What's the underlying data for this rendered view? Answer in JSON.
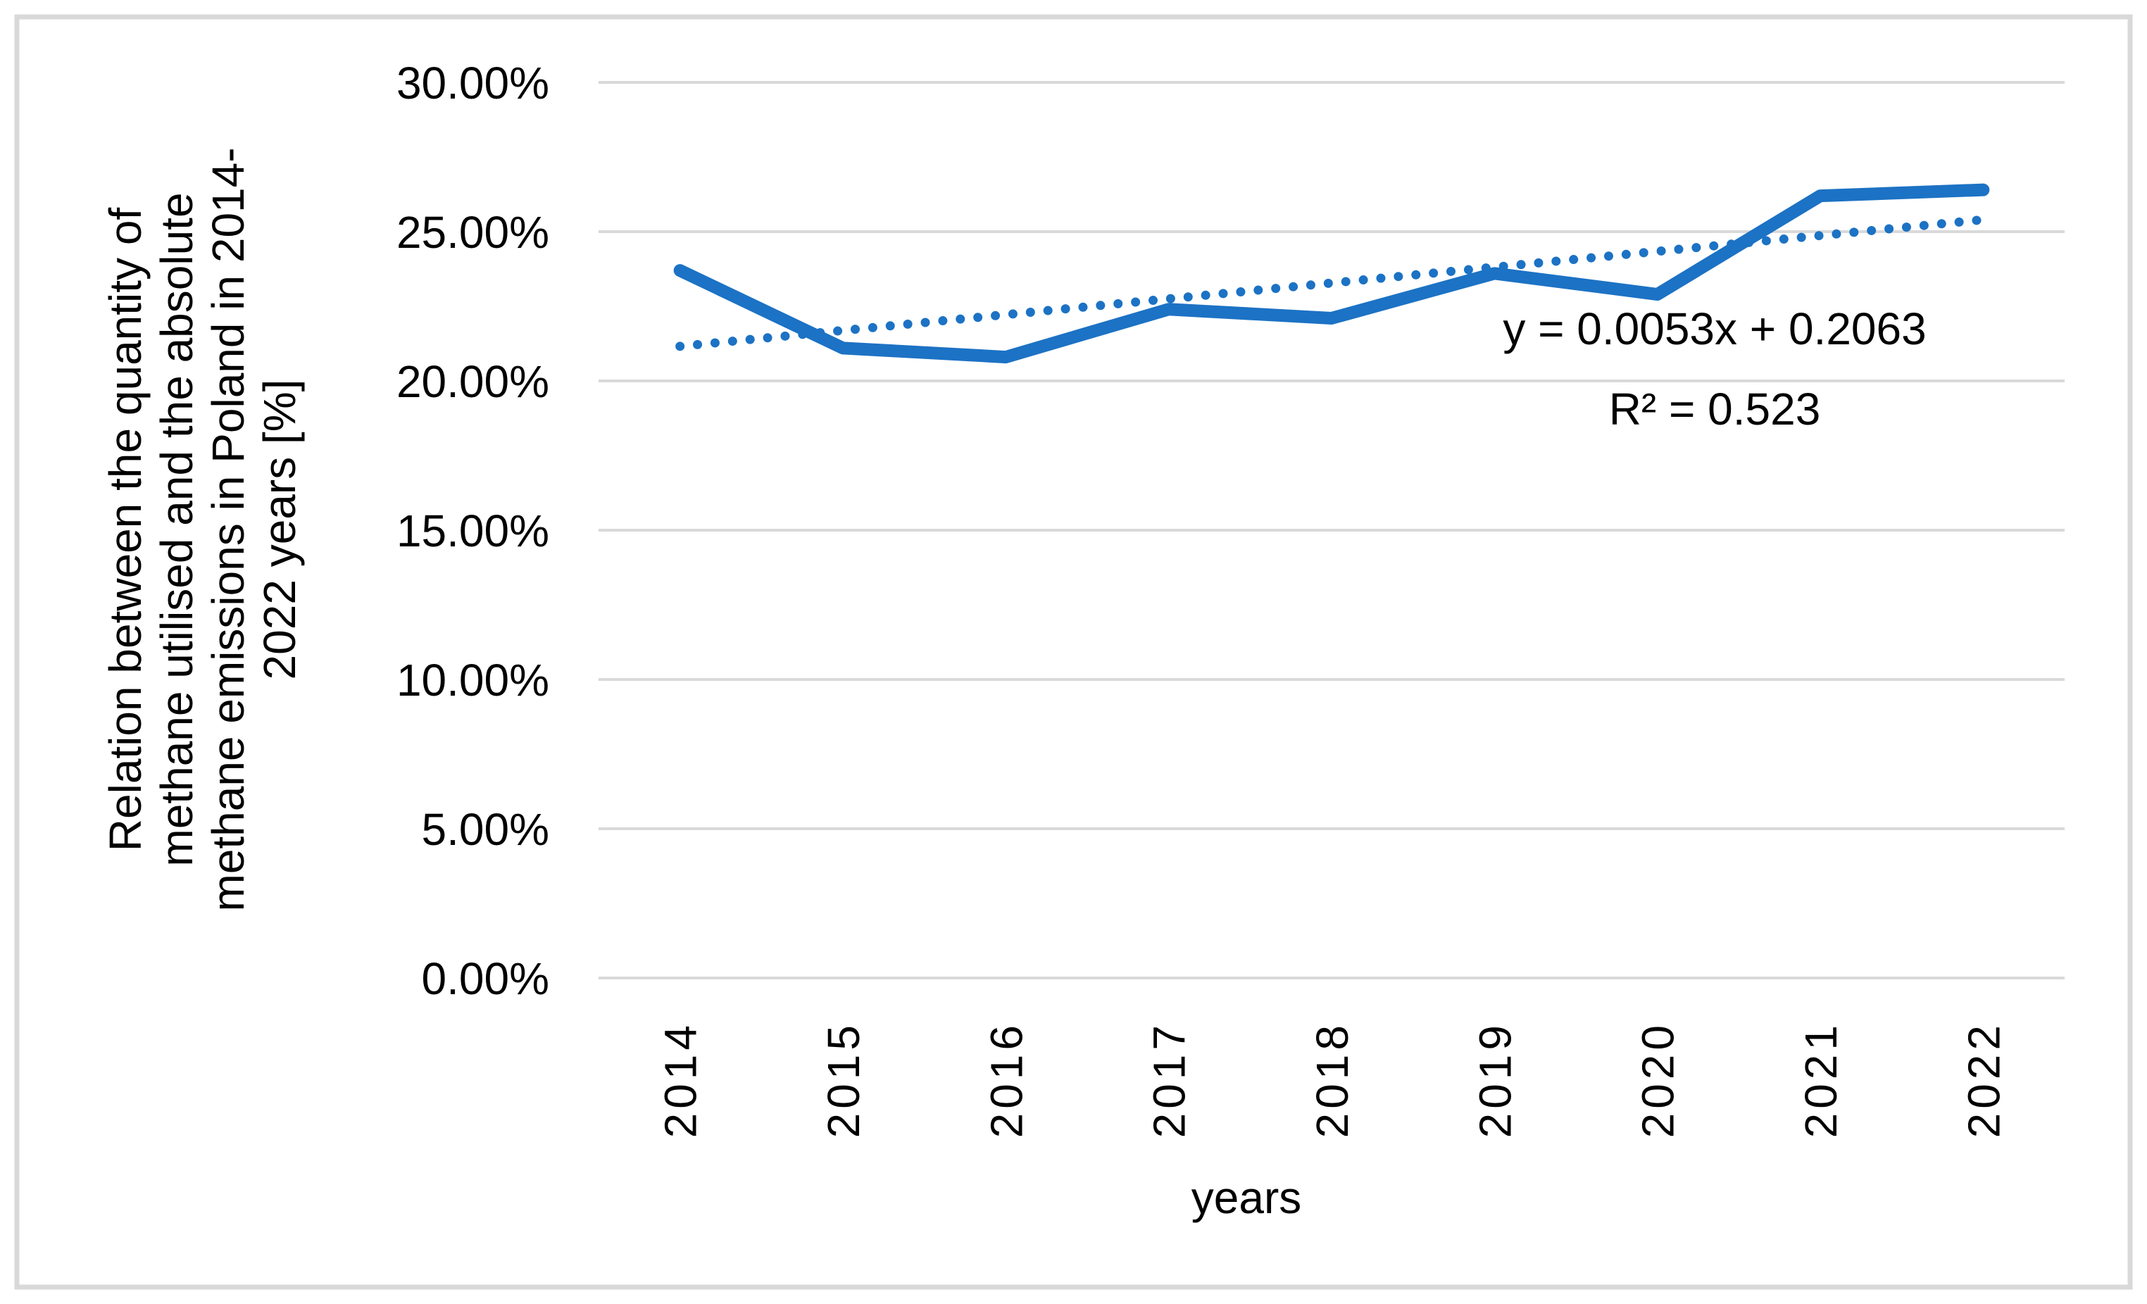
{
  "page": {
    "background": "#FFFFFF",
    "border_color": "#D9D9D9"
  },
  "colors": {
    "series": "#1C72C4",
    "trendline": "#1C72C4",
    "gridline": "#D9D9D9",
    "text": "#000000"
  },
  "y_axis": {
    "title_lines": [
      "Relation between the quantity of",
      "methane utilised and the absolute",
      "methane emissions in Poland in 2014-",
      "2022 years [%]"
    ],
    "tick_labels": [
      "30.00%",
      "25.00%",
      "20.00%",
      "15.00%",
      "10.00%",
      "5.00%",
      "0.00%"
    ],
    "max_pct": 30,
    "min_pct": 0
  },
  "x_axis": {
    "title": "years",
    "tick_labels": [
      "2014",
      "2015",
      "2016",
      "2017",
      "2018",
      "2019",
      "2020",
      "2021",
      "2022"
    ]
  },
  "trendline": {
    "equation_label": "y = 0.0053x + 0.2063",
    "r2_label": "R² = 0.523",
    "slope": 0.0053,
    "intercept": 0.2063,
    "style": "dotted"
  },
  "chart_data": {
    "type": "line",
    "title": "",
    "categories": [
      2014,
      2015,
      2016,
      2017,
      2018,
      2019,
      2020,
      2021,
      2022
    ],
    "series": [
      {
        "name": "Relation between methane utilised and absolute methane emissions",
        "values_pct": [
          23.7,
          21.1,
          20.8,
          22.4,
          22.1,
          23.6,
          22.9,
          26.2,
          26.4
        ]
      }
    ],
    "trend_values_pct": [
      21.16,
      21.69,
      22.22,
      22.75,
      23.28,
      23.81,
      24.34,
      24.87,
      25.4
    ],
    "xlabel": "years",
    "ylabel": "Relation between the quantity of methane utilised and the absolute methane emissions in Poland in 2014-2022 years [%]",
    "ylim_pct": [
      0,
      30
    ],
    "y_tick_step_pct": 5,
    "grid": "horizontal",
    "legend_position": "none"
  }
}
